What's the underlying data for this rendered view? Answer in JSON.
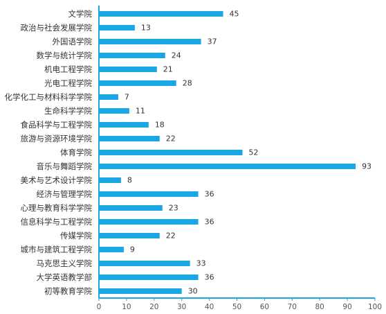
{
  "chart_data": {
    "type": "bar",
    "orientation": "horizontal",
    "title": "",
    "xlabel": "",
    "ylabel": "",
    "categories": [
      "文学院",
      "政治与社会发展学院",
      "外国语学院",
      "数学与统计学院",
      "机电工程学院",
      "光电工程学院",
      "化学化工与材料科学学院",
      "生命科学学院",
      "食品科学与工程学院",
      "旅游与资源环境学院",
      "体育学院",
      "音乐与舞蹈学院",
      "美术与艺术设计学院",
      "经济与管理学院",
      "心理与教育科学学院",
      "信息科学与工程学院",
      "传媒学院",
      "城市与建筑工程学院",
      "马克思主义学院",
      "大学英语教学部",
      "初等教育学院"
    ],
    "values": [
      45,
      13,
      37,
      24,
      21,
      28,
      7,
      11,
      18,
      22,
      52,
      93,
      8,
      36,
      23,
      36,
      22,
      9,
      33,
      36,
      30
    ],
    "value_labels": [
      "45",
      "13",
      "37",
      "24",
      "21",
      "28",
      "7",
      "11",
      "18",
      "22",
      "52",
      "93",
      "8",
      "36",
      "23",
      "36",
      "22",
      "9",
      "33",
      "36",
      "30"
    ],
    "xticks": [
      "0",
      "10",
      "20",
      "30",
      "40",
      "50",
      "60",
      "70",
      "80",
      "90",
      "100"
    ],
    "xlim": [
      0,
      100
    ],
    "grid": false,
    "legend": "none",
    "colors": {
      "bar": "#1AA6E4",
      "axis": "#1AA6E4",
      "text": "#333333"
    }
  }
}
